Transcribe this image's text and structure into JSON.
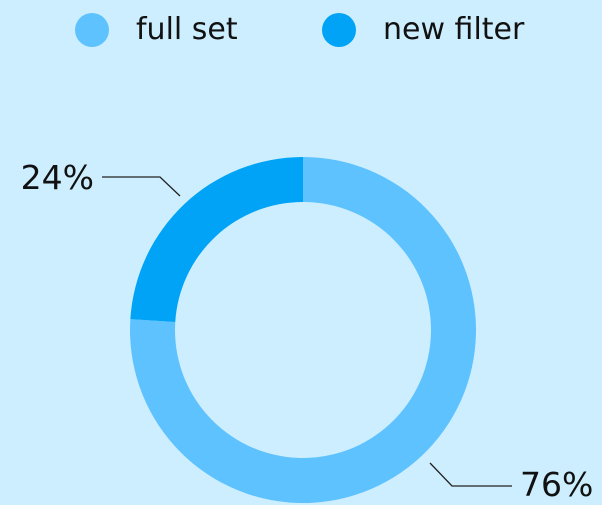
{
  "colors": {
    "background": "#cdeeff",
    "full_set": "#5ec2ff",
    "new_filter": "#00a3f5",
    "leader_line": "#222222"
  },
  "legend": {
    "items": [
      {
        "label": "full set",
        "color": "#5ec2ff"
      },
      {
        "label": "new filter",
        "color": "#00a3f5"
      }
    ]
  },
  "chart_data": {
    "type": "pie",
    "donut": true,
    "title": "",
    "legend_position": "top",
    "slices": [
      {
        "name": "full set",
        "value": 76,
        "label": "76%",
        "color": "#5ec2ff"
      },
      {
        "name": "new filter",
        "value": 24,
        "label": "24%",
        "color": "#00a3f5"
      }
    ]
  }
}
